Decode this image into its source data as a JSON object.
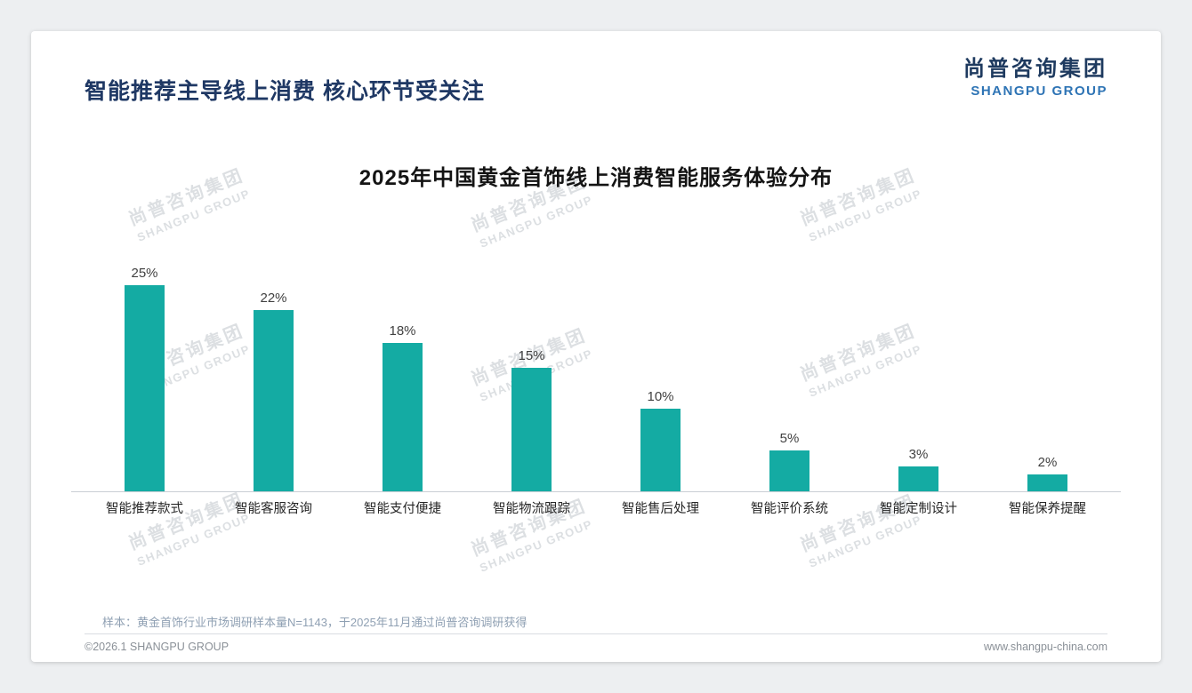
{
  "header": {
    "page_title": "智能推荐主导线上消费 核心环节受关注",
    "logo_cn": "尚普咨询集团",
    "logo_en": "SHANGPU GROUP"
  },
  "watermark": {
    "line1": "尚普咨询集团",
    "line2": "SHANGPU GROUP"
  },
  "chart_data": {
    "type": "bar",
    "title": "2025年中国黄金首饰线上消费智能服务体验分布",
    "categories": [
      "智能推荐款式",
      "智能客服咨询",
      "智能支付便捷",
      "智能物流跟踪",
      "智能售后处理",
      "智能评价系统",
      "智能定制设计",
      "智能保养提醒"
    ],
    "values": [
      25,
      22,
      18,
      15,
      10,
      5,
      3,
      2
    ],
    "unit": "%",
    "bar_color": "#14aba3",
    "value_label_color": "#404040",
    "ylim": [
      0,
      28
    ],
    "grid": false,
    "legend": false,
    "data_labels": true
  },
  "footnote": "样本：黄金首饰行业市场调研样本量N=1143，于2025年11月通过尚普咨询调研获得",
  "footer": {
    "copyright": "©2026.1 SHANGPU GROUP",
    "website": "www.shangpu-china.com"
  }
}
